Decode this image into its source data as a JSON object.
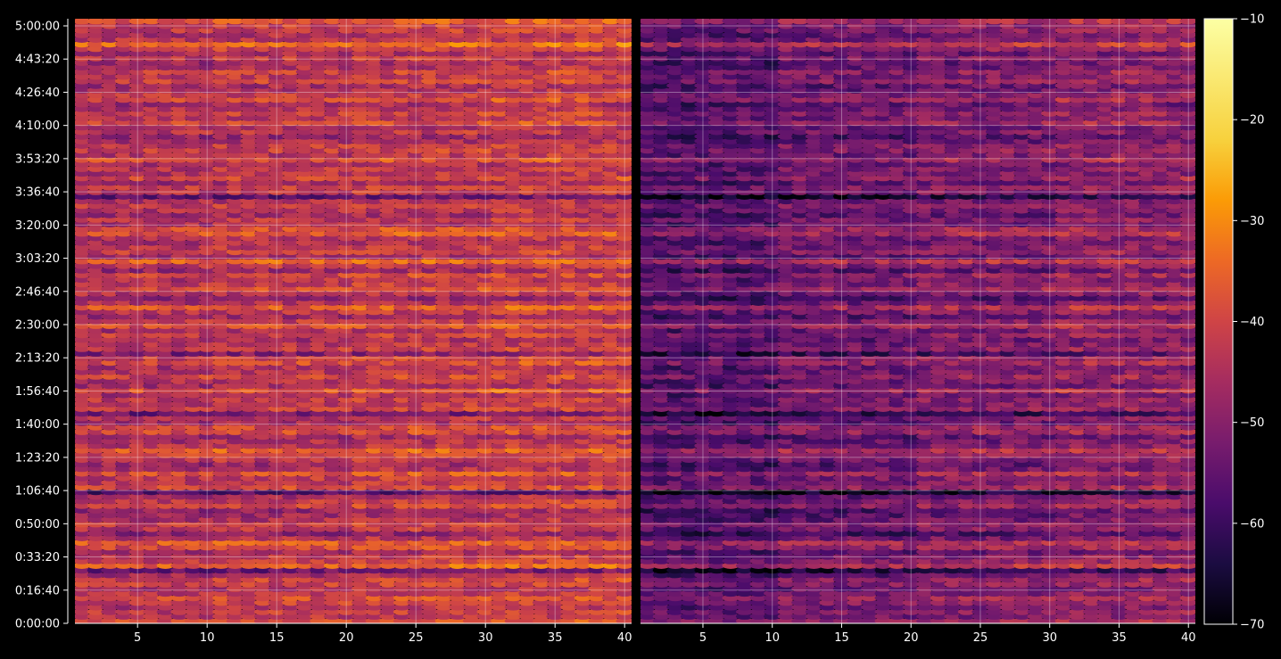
{
  "chart_data": {
    "type": "heatmap",
    "title": "",
    "colormap": "inferno",
    "background": "#000000",
    "grid": true,
    "grid_color": "#ffffff",
    "panels": [
      {
        "name": "",
        "x_range": [
          1,
          40
        ],
        "x_ticks": [
          5,
          10,
          15,
          20,
          25,
          30,
          35,
          40
        ],
        "y_range_seconds": [
          0,
          18000
        ],
        "row_profile": [
          -40,
          -44,
          -43,
          -45,
          -42,
          -40,
          -44,
          -46,
          -42,
          -41,
          -47,
          -55,
          -36,
          -42,
          -44,
          -48,
          -40,
          -37,
          -45,
          -50,
          -44,
          -42,
          -46,
          -48,
          -49,
          -41,
          -43,
          -47,
          -58,
          -40,
          -44,
          -43,
          -39,
          -46,
          -48,
          -44,
          -41,
          -37,
          -44,
          -46,
          -48,
          -40,
          -41,
          -47,
          -45,
          -54,
          -42,
          -44,
          -43,
          -46,
          -38,
          -47,
          -45,
          -41,
          -45,
          -46,
          -40,
          -42,
          -52,
          -43,
          -45,
          -47,
          -42,
          -46,
          -39,
          -43,
          -48,
          -44,
          -38,
          -46,
          -50,
          -44,
          -40,
          -43,
          -45,
          -41,
          -48,
          -44,
          -36,
          -47,
          -42,
          -44,
          -46,
          -45,
          -38,
          -40,
          -46,
          -44,
          -48,
          -45,
          -43,
          -46,
          -56,
          -44,
          -42,
          -47,
          -41,
          -45,
          -44,
          -46,
          -39,
          -45,
          -42,
          -43,
          -47,
          -49,
          -44,
          -46,
          -40,
          -44,
          -42,
          -45,
          -48,
          -40,
          -43,
          -46,
          -47,
          -41,
          -44,
          -42,
          -46,
          -48,
          -43,
          -47,
          -42,
          -35,
          -44,
          -46,
          -43,
          -42,
          -38
        ],
        "column_trend": [
          -44,
          -43,
          -42,
          -41
        ],
        "value_offset": 0
      },
      {
        "name": "",
        "x_range": [
          1,
          40
        ],
        "x_ticks": [
          5,
          10,
          15,
          20,
          25,
          30,
          35,
          40
        ],
        "y_range_seconds": [
          0,
          18000
        ],
        "row_profile": [
          -40,
          -44,
          -43,
          -45,
          -42,
          -40,
          -44,
          -46,
          -42,
          -41,
          -47,
          -55,
          -36,
          -42,
          -44,
          -48,
          -40,
          -37,
          -45,
          -50,
          -44,
          -42,
          -46,
          -48,
          -49,
          -41,
          -43,
          -47,
          -58,
          -40,
          -44,
          -43,
          -39,
          -46,
          -48,
          -44,
          -41,
          -37,
          -44,
          -46,
          -48,
          -40,
          -41,
          -47,
          -45,
          -54,
          -42,
          -44,
          -43,
          -46,
          -38,
          -47,
          -45,
          -41,
          -45,
          -46,
          -40,
          -42,
          -52,
          -43,
          -45,
          -47,
          -42,
          -46,
          -39,
          -43,
          -48,
          -44,
          -38,
          -46,
          -50,
          -44,
          -40,
          -43,
          -45,
          -41,
          -48,
          -44,
          -36,
          -47,
          -42,
          -44,
          -46,
          -45,
          -38,
          -40,
          -46,
          -44,
          -48,
          -45,
          -43,
          -46,
          -56,
          -44,
          -42,
          -47,
          -41,
          -45,
          -44,
          -46,
          -39,
          -45,
          -42,
          -43,
          -47,
          -49,
          -44,
          -46,
          -40,
          -44,
          -42,
          -45,
          -48,
          -40,
          -43,
          -46,
          -47,
          -41,
          -44,
          -42,
          -46,
          -48,
          -43,
          -47,
          -42,
          -35,
          -44,
          -46,
          -43,
          -42,
          -38
        ],
        "column_trend": [
          -52,
          -49,
          -47,
          -45
        ],
        "value_offset": -4
      }
    ],
    "y_tick_labels": [
      "0:00:00",
      "0:16:40",
      "0:33:20",
      "0:50:00",
      "1:06:40",
      "1:23:20",
      "1:40:00",
      "1:56:40",
      "2:13:20",
      "2:30:00",
      "2:46:40",
      "3:03:20",
      "3:20:00",
      "3:36:40",
      "3:53:20",
      "4:10:00",
      "4:26:40",
      "4:43:20",
      "5:00:00"
    ],
    "y_tick_seconds": [
      0,
      1000,
      2000,
      3000,
      4000,
      5000,
      6000,
      7000,
      8000,
      9000,
      10000,
      11000,
      12000,
      13000,
      14000,
      15000,
      16000,
      17000,
      18000
    ],
    "colorbar": {
      "min": -70,
      "max": -10,
      "ticks": [
        -70,
        -60,
        -50,
        -40,
        -30,
        -20,
        -10
      ]
    }
  }
}
